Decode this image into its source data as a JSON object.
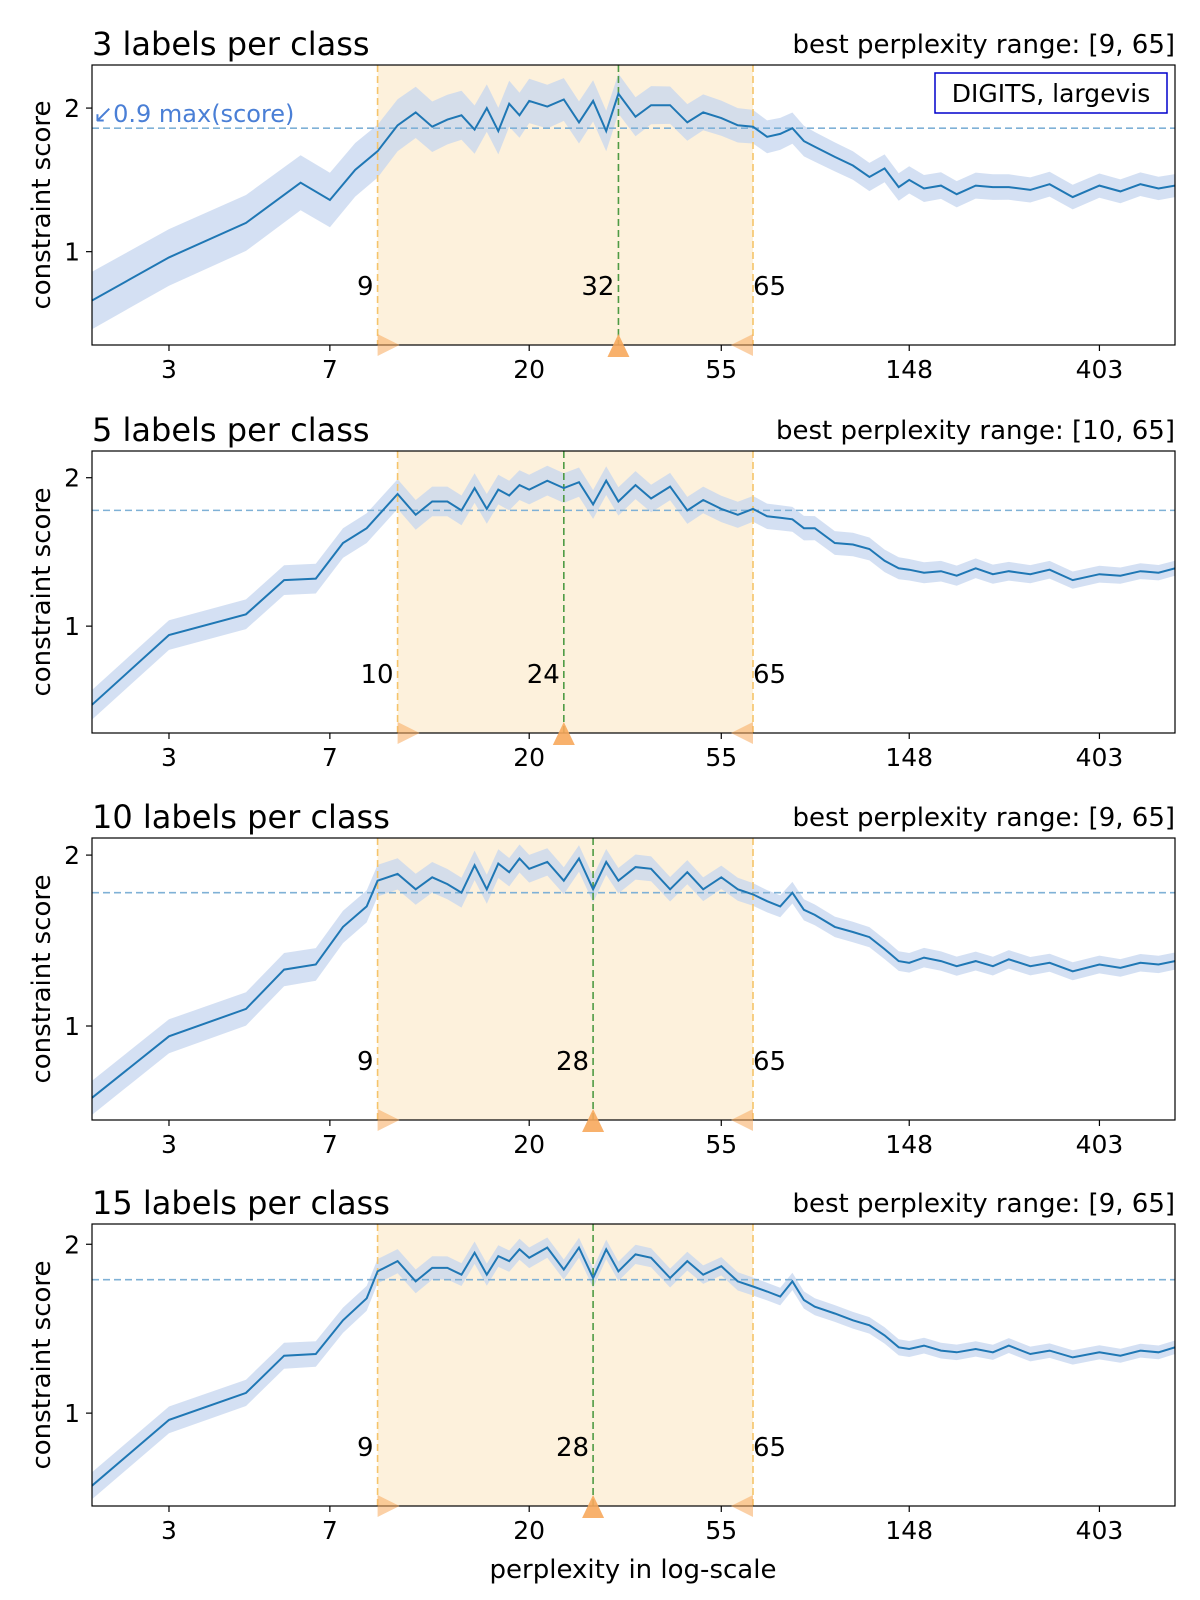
{
  "figure": {
    "xlabel": "perplexity in log-scale",
    "ylabel": "constraint score",
    "legend_box": "DIGITS, largevis",
    "threshold_label": "↙0.9 max(score)",
    "range_prefix": "best perplexity range: "
  },
  "colors": {
    "line": "#1f77b4",
    "band": "#c6d6ef",
    "threshold_line": "#7fb1d6",
    "threshold_text": "#4a7fd6",
    "range_fill": "#fdf1dc",
    "range_line": "#f5c46b",
    "best_line": "#4e9a44",
    "marker": "#f7a95c",
    "legend_border": "#0000cc"
  },
  "chart_data": [
    {
      "type": "line",
      "title": "3 labels per class",
      "subtitle": "best perplexity range: [9, 65]",
      "x_ticks": [
        3,
        7,
        20,
        55,
        148,
        403
      ],
      "y_ticks": [
        1,
        2
      ],
      "xlim": [
        2,
        600
      ],
      "ylim": [
        0.35,
        2.3
      ],
      "xscale": "log",
      "threshold": 1.86,
      "range": [
        9,
        65
      ],
      "best": 32,
      "range_labels": [
        "9",
        "32",
        "65"
      ],
      "band_width": [
        0.2,
        0.15,
        0.1,
        0.08
      ],
      "series": {
        "x": [
          2,
          3,
          4.5,
          6,
          7,
          8,
          9,
          10,
          11,
          12,
          13,
          14,
          15,
          16,
          17,
          18,
          19,
          20,
          22,
          24,
          26,
          28,
          30,
          32,
          35,
          38,
          42,
          46,
          50,
          55,
          60,
          65,
          70,
          75,
          80,
          85,
          90,
          100,
          110,
          120,
          130,
          140,
          148,
          160,
          175,
          190,
          210,
          230,
          250,
          280,
          310,
          350,
          403,
          450,
          500,
          550,
          600
        ],
        "y": [
          0.66,
          0.96,
          1.2,
          1.48,
          1.36,
          1.57,
          1.7,
          1.88,
          1.97,
          1.87,
          1.92,
          1.95,
          1.85,
          2.0,
          1.84,
          2.03,
          1.95,
          2.05,
          2.01,
          2.06,
          1.9,
          2.05,
          1.84,
          2.1,
          1.94,
          2.02,
          2.02,
          1.9,
          1.97,
          1.93,
          1.88,
          1.87,
          1.8,
          1.82,
          1.86,
          1.77,
          1.73,
          1.66,
          1.6,
          1.52,
          1.58,
          1.45,
          1.5,
          1.44,
          1.46,
          1.4,
          1.46,
          1.45,
          1.45,
          1.43,
          1.47,
          1.38,
          1.46,
          1.42,
          1.47,
          1.44,
          1.46
        ]
      }
    },
    {
      "type": "line",
      "title": "5 labels per class",
      "subtitle": "best perplexity range: [10, 65]",
      "x_ticks": [
        3,
        7,
        20,
        55,
        148,
        403
      ],
      "y_ticks": [
        1,
        2
      ],
      "xlim": [
        2,
        600
      ],
      "ylim": [
        0.28,
        2.18
      ],
      "xscale": "log",
      "threshold": 1.78,
      "range": [
        10,
        65
      ],
      "best": 24,
      "range_labels": [
        "10",
        "24",
        "65"
      ],
      "band_width": [
        0.1,
        0.1,
        0.08,
        0.05
      ],
      "series": {
        "x": [
          2,
          3,
          4.5,
          5.5,
          6.5,
          7.5,
          8.5,
          10,
          11,
          12,
          13,
          14,
          15,
          16,
          17,
          18,
          19,
          20,
          22,
          24,
          26,
          28,
          30,
          32,
          35,
          38,
          42,
          46,
          50,
          55,
          60,
          65,
          70,
          75,
          80,
          85,
          90,
          100,
          110,
          120,
          130,
          140,
          148,
          160,
          175,
          190,
          210,
          230,
          250,
          280,
          310,
          350,
          403,
          450,
          500,
          550,
          600
        ],
        "y": [
          0.47,
          0.94,
          1.08,
          1.31,
          1.32,
          1.56,
          1.66,
          1.89,
          1.75,
          1.84,
          1.84,
          1.78,
          1.93,
          1.79,
          1.92,
          1.88,
          1.95,
          1.92,
          1.98,
          1.93,
          1.97,
          1.82,
          1.98,
          1.84,
          1.95,
          1.86,
          1.94,
          1.78,
          1.85,
          1.79,
          1.75,
          1.79,
          1.74,
          1.73,
          1.72,
          1.66,
          1.66,
          1.56,
          1.55,
          1.52,
          1.44,
          1.39,
          1.38,
          1.36,
          1.37,
          1.34,
          1.39,
          1.35,
          1.37,
          1.35,
          1.38,
          1.31,
          1.35,
          1.34,
          1.37,
          1.36,
          1.39
        ]
      }
    },
    {
      "type": "line",
      "title": "10 labels per class",
      "subtitle": "best perplexity range: [9, 65]",
      "x_ticks": [
        3,
        7,
        20,
        55,
        148,
        403
      ],
      "y_ticks": [
        1,
        2
      ],
      "xlim": [
        2,
        600
      ],
      "ylim": [
        0.45,
        2.1
      ],
      "xscale": "log",
      "threshold": 1.78,
      "range": [
        9,
        65
      ],
      "best": 28,
      "range_labels": [
        "9",
        "28",
        "65"
      ],
      "band_width": [
        0.1,
        0.08,
        0.06,
        0.05
      ],
      "series": {
        "x": [
          2,
          3,
          4.5,
          5.5,
          6.5,
          7.5,
          8.5,
          9,
          10,
          11,
          12,
          13,
          14,
          15,
          16,
          17,
          18,
          19,
          20,
          22,
          24,
          26,
          28,
          30,
          32,
          35,
          38,
          42,
          46,
          50,
          55,
          60,
          65,
          70,
          75,
          80,
          85,
          90,
          100,
          110,
          120,
          130,
          140,
          148,
          160,
          175,
          190,
          210,
          230,
          250,
          280,
          310,
          350,
          403,
          450,
          500,
          550,
          600
        ],
        "y": [
          0.58,
          0.94,
          1.1,
          1.33,
          1.36,
          1.58,
          1.7,
          1.85,
          1.89,
          1.8,
          1.87,
          1.83,
          1.78,
          1.94,
          1.8,
          1.95,
          1.9,
          1.98,
          1.92,
          1.96,
          1.85,
          1.98,
          1.8,
          1.96,
          1.85,
          1.93,
          1.92,
          1.8,
          1.9,
          1.8,
          1.87,
          1.8,
          1.77,
          1.73,
          1.7,
          1.78,
          1.68,
          1.65,
          1.58,
          1.55,
          1.52,
          1.45,
          1.38,
          1.37,
          1.4,
          1.38,
          1.35,
          1.38,
          1.35,
          1.39,
          1.35,
          1.37,
          1.32,
          1.36,
          1.34,
          1.37,
          1.36,
          1.38
        ]
      }
    },
    {
      "type": "line",
      "title": "15 labels per class",
      "subtitle": "best perplexity range: [9, 65]",
      "x_ticks": [
        3,
        7,
        20,
        55,
        148,
        403
      ],
      "y_ticks": [
        1,
        2
      ],
      "xlim": [
        2,
        600
      ],
      "ylim": [
        0.45,
        2.12
      ],
      "xscale": "log",
      "threshold": 1.79,
      "range": [
        9,
        65
      ],
      "best": 28,
      "range_labels": [
        "9",
        "28",
        "65"
      ],
      "band_width": [
        0.08,
        0.06,
        0.05,
        0.04
      ],
      "series": {
        "x": [
          2,
          3,
          4.5,
          5.5,
          6.5,
          7.5,
          8.5,
          9,
          10,
          11,
          12,
          13,
          14,
          15,
          16,
          17,
          18,
          19,
          20,
          22,
          24,
          26,
          28,
          30,
          32,
          35,
          38,
          42,
          46,
          50,
          55,
          60,
          65,
          70,
          75,
          80,
          85,
          90,
          100,
          110,
          120,
          130,
          140,
          148,
          160,
          175,
          190,
          210,
          230,
          250,
          280,
          310,
          350,
          403,
          450,
          500,
          550,
          600
        ],
        "y": [
          0.57,
          0.96,
          1.12,
          1.34,
          1.35,
          1.55,
          1.68,
          1.84,
          1.9,
          1.78,
          1.86,
          1.86,
          1.82,
          1.95,
          1.82,
          1.93,
          1.9,
          1.97,
          1.92,
          1.98,
          1.85,
          1.98,
          1.8,
          1.97,
          1.84,
          1.94,
          1.92,
          1.8,
          1.9,
          1.82,
          1.87,
          1.78,
          1.75,
          1.72,
          1.69,
          1.78,
          1.67,
          1.63,
          1.59,
          1.55,
          1.52,
          1.46,
          1.39,
          1.38,
          1.4,
          1.37,
          1.36,
          1.38,
          1.36,
          1.4,
          1.35,
          1.37,
          1.33,
          1.36,
          1.34,
          1.37,
          1.36,
          1.39
        ]
      }
    }
  ]
}
